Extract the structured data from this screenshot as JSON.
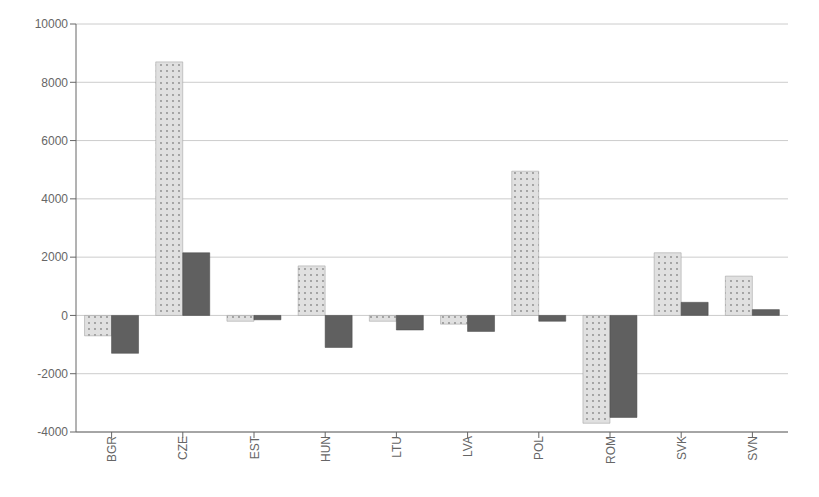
{
  "chart_data": {
    "type": "bar",
    "categories": [
      "BGR",
      "CZE",
      "EST",
      "HUN",
      "LTU",
      "LVA",
      "POL",
      "ROM",
      "SVK",
      "SVN"
    ],
    "series": [
      {
        "color": "#e0e0e0",
        "values": [
          -700,
          8700,
          -200,
          1700,
          -200,
          -300,
          4950,
          -3700,
          2150,
          1350
        ]
      },
      {
        "color": "#606060",
        "values": [
          -1300,
          2150,
          -150,
          -1100,
          -500,
          -550,
          -200,
          -3500,
          450,
          200
        ]
      }
    ],
    "ylim": [
      -4000,
      10000
    ],
    "yticks": [
      -4000,
      -2000,
      0,
      2000,
      4000,
      6000,
      8000,
      10000
    ],
    "grid": true
  }
}
